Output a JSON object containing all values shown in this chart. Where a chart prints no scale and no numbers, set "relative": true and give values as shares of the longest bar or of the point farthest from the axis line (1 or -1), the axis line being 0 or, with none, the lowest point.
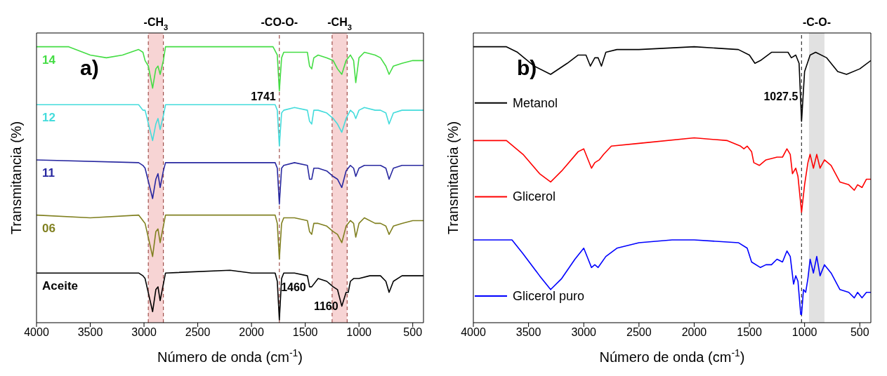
{
  "chart_data": [
    {
      "type": "line",
      "relative": true,
      "xlabel": "Número de onda (cm$^{-1}$)",
      "ylabel": "Transmitancia (%)",
      "xlim": [
        4000,
        400
      ],
      "xticks": [
        4000,
        3500,
        3000,
        2500,
        2000,
        1500,
        1000,
        500
      ],
      "legend": false,
      "series": [
        {
          "name": "14",
          "color": "#44dd44",
          "x": [
            4000,
            3700,
            3500,
            3350,
            3200,
            3050,
            3010,
            2990,
            2960,
            2920,
            2890,
            2870,
            2850,
            2820,
            2800,
            2500,
            2000,
            1800,
            1760,
            1741,
            1720,
            1700,
            1600,
            1480,
            1460,
            1440,
            1420,
            1380,
            1300,
            1240,
            1200,
            1160,
            1120,
            1080,
            1050,
            1030,
            1000,
            950,
            850,
            800,
            750,
            720,
            680,
            600,
            500,
            400
          ],
          "values": [
            1.0,
            1.0,
            0.97,
            0.96,
            0.97,
            0.99,
            0.98,
            0.95,
            0.93,
            0.85,
            0.92,
            0.93,
            0.9,
            0.95,
            1.0,
            1.0,
            1.0,
            1.0,
            0.97,
            0.84,
            0.96,
            0.98,
            0.98,
            0.98,
            0.93,
            0.92,
            0.96,
            0.97,
            0.96,
            0.95,
            0.92,
            0.9,
            0.95,
            0.97,
            0.95,
            0.87,
            0.96,
            0.98,
            0.97,
            0.96,
            0.93,
            0.9,
            0.93,
            0.94,
            0.95,
            0.95
          ]
        },
        {
          "name": "12",
          "color": "#44dcdc",
          "x": [
            4000,
            3050,
            3010,
            2990,
            2920,
            2890,
            2870,
            2850,
            2820,
            2800,
            2000,
            1780,
            1760,
            1741,
            1720,
            1700,
            1600,
            1480,
            1460,
            1440,
            1420,
            1380,
            1300,
            1240,
            1200,
            1160,
            1120,
            1080,
            1050,
            1030,
            1000,
            950,
            850,
            800,
            750,
            720,
            680,
            600,
            500,
            400
          ],
          "values": [
            0.79,
            0.79,
            0.77,
            0.77,
            0.66,
            0.72,
            0.74,
            0.7,
            0.75,
            0.79,
            0.79,
            0.79,
            0.77,
            0.64,
            0.76,
            0.77,
            0.78,
            0.77,
            0.73,
            0.72,
            0.77,
            0.77,
            0.76,
            0.74,
            0.72,
            0.69,
            0.74,
            0.77,
            0.76,
            0.74,
            0.77,
            0.78,
            0.77,
            0.77,
            0.76,
            0.72,
            0.76,
            0.77,
            0.77,
            0.77
          ]
        },
        {
          "name": "11",
          "color": "#2828a0",
          "x": [
            4000,
            3050,
            3010,
            2990,
            2920,
            2890,
            2870,
            2850,
            2820,
            2800,
            2000,
            1780,
            1760,
            1741,
            1720,
            1700,
            1600,
            1480,
            1460,
            1440,
            1420,
            1380,
            1300,
            1240,
            1200,
            1160,
            1120,
            1080,
            1050,
            1030,
            1000,
            950,
            850,
            800,
            750,
            720,
            680,
            600,
            500,
            400
          ],
          "values": [
            0.59,
            0.58,
            0.57,
            0.56,
            0.45,
            0.52,
            0.54,
            0.49,
            0.55,
            0.58,
            0.58,
            0.58,
            0.56,
            0.43,
            0.56,
            0.57,
            0.58,
            0.57,
            0.52,
            0.52,
            0.56,
            0.56,
            0.55,
            0.53,
            0.52,
            0.49,
            0.55,
            0.57,
            0.56,
            0.53,
            0.56,
            0.57,
            0.57,
            0.57,
            0.56,
            0.52,
            0.56,
            0.57,
            0.57,
            0.57
          ]
        },
        {
          "name": "06",
          "color": "#808020",
          "x": [
            4000,
            3500,
            3050,
            3010,
            2990,
            2920,
            2890,
            2870,
            2850,
            2820,
            2800,
            2000,
            1780,
            1760,
            1741,
            1720,
            1700,
            1600,
            1480,
            1460,
            1440,
            1420,
            1380,
            1300,
            1240,
            1200,
            1160,
            1120,
            1080,
            1050,
            1030,
            1000,
            950,
            850,
            800,
            750,
            720,
            680,
            600,
            500,
            400
          ],
          "values": [
            0.39,
            0.38,
            0.39,
            0.37,
            0.36,
            0.24,
            0.33,
            0.34,
            0.29,
            0.35,
            0.39,
            0.39,
            0.39,
            0.36,
            0.23,
            0.36,
            0.38,
            0.38,
            0.37,
            0.33,
            0.32,
            0.36,
            0.36,
            0.35,
            0.33,
            0.32,
            0.29,
            0.35,
            0.37,
            0.36,
            0.31,
            0.36,
            0.38,
            0.36,
            0.36,
            0.35,
            0.32,
            0.35,
            0.36,
            0.37,
            0.37
          ]
        },
        {
          "name": "Aceite",
          "color": "#000000",
          "x": [
            4000,
            3050,
            3010,
            2990,
            2920,
            2890,
            2870,
            2850,
            2820,
            2800,
            2200,
            2000,
            1780,
            1760,
            1741,
            1720,
            1700,
            1600,
            1480,
            1460,
            1440,
            1380,
            1300,
            1240,
            1200,
            1160,
            1120,
            1100,
            1080,
            1050,
            1000,
            900,
            800,
            750,
            720,
            680,
            600,
            500,
            400
          ],
          "values": [
            0.18,
            0.18,
            0.17,
            0.16,
            0.04,
            0.12,
            0.13,
            0.08,
            0.14,
            0.18,
            0.19,
            0.18,
            0.18,
            0.15,
            0.01,
            0.16,
            0.18,
            0.18,
            0.17,
            0.13,
            0.13,
            0.16,
            0.15,
            0.13,
            0.12,
            0.06,
            0.11,
            0.11,
            0.15,
            0.16,
            0.16,
            0.17,
            0.17,
            0.15,
            0.11,
            0.15,
            0.17,
            0.17,
            0.17
          ]
        }
      ],
      "bands": [
        {
          "axis": "x",
          "from": 2960,
          "to": 2820,
          "label": "-CH$_{3}$",
          "color": "#f6cccc"
        },
        {
          "axis": "x",
          "from": 1250,
          "to": 1110,
          "label": "-CH$_{3}$",
          "color": "#f6cccc"
        }
      ],
      "ref_lines": [
        {
          "axis": "x",
          "value": 1741,
          "label": "-CO-O-",
          "color": "#a0504c",
          "line_style": "dashed"
        },
        {
          "axis": "x",
          "value": 2960,
          "color": "#a0504c",
          "line_style": "dashed"
        },
        {
          "axis": "x",
          "value": 2820,
          "color": "#a0504c",
          "line_style": "dashed"
        },
        {
          "axis": "x",
          "value": 1250,
          "color": "#a0504c",
          "line_style": "dashed"
        },
        {
          "axis": "x",
          "value": 1110,
          "color": "#a0504c",
          "line_style": "dashed"
        }
      ],
      "annotations": [
        "a)",
        {
          "text": "1741",
          "x": 1741,
          "y": 0.82
        },
        {
          "text": "1160",
          "x": 1160,
          "y": 0.06
        },
        {
          "text": "1460",
          "x": 1460,
          "y": 0.13
        }
      ]
    },
    {
      "type": "line",
      "relative": true,
      "xlabel": "Número de onda (cm$^{-1}$)",
      "ylabel": "Transmitancia (%)",
      "xlim": [
        4000,
        400
      ],
      "xticks": [
        4000,
        3500,
        3000,
        2500,
        2000,
        1500,
        1000,
        500
      ],
      "legend": "left",
      "series": [
        {
          "name": "Metanol",
          "color": "#000000",
          "x": [
            4000,
            3700,
            3600,
            3450,
            3300,
            3150,
            3050,
            2980,
            2940,
            2900,
            2870,
            2840,
            2800,
            2700,
            2500,
            2000,
            1600,
            1500,
            1450,
            1400,
            1300,
            1150,
            1120,
            1080,
            1050,
            1027.5,
            1000,
            950,
            900,
            800,
            700,
            620,
            500,
            400
          ],
          "values": [
            1.0,
            1.0,
            0.98,
            0.93,
            0.9,
            0.94,
            0.97,
            0.97,
            0.93,
            0.96,
            0.96,
            0.93,
            0.98,
            0.99,
            0.99,
            1.0,
            0.99,
            0.97,
            0.94,
            0.95,
            0.98,
            0.98,
            0.96,
            0.97,
            0.94,
            0.73,
            0.91,
            0.97,
            0.98,
            0.96,
            0.91,
            0.9,
            0.92,
            0.95
          ]
        },
        {
          "name": "Glicerol",
          "color": "#ff0000",
          "x": [
            4000,
            3700,
            3550,
            3400,
            3300,
            3200,
            3050,
            3000,
            2960,
            2930,
            2900,
            2860,
            2820,
            2750,
            2500,
            2000,
            1700,
            1580,
            1550,
            1520,
            1480,
            1460,
            1410,
            1350,
            1250,
            1200,
            1160,
            1130,
            1110,
            1080,
            1060,
            1027.5,
            1000,
            970,
            950,
            920,
            890,
            860,
            820,
            760,
            680,
            600,
            550,
            520,
            480,
            440,
            400
          ],
          "values": [
            0.66,
            0.66,
            0.61,
            0.54,
            0.51,
            0.55,
            0.62,
            0.63,
            0.59,
            0.56,
            0.58,
            0.59,
            0.61,
            0.64,
            0.65,
            0.67,
            0.66,
            0.64,
            0.63,
            0.64,
            0.62,
            0.58,
            0.57,
            0.59,
            0.6,
            0.6,
            0.63,
            0.61,
            0.54,
            0.56,
            0.53,
            0.4,
            0.5,
            0.58,
            0.61,
            0.56,
            0.61,
            0.56,
            0.59,
            0.57,
            0.51,
            0.5,
            0.48,
            0.5,
            0.49,
            0.52,
            0.52
          ]
        },
        {
          "name": "Glicerol puro",
          "color": "#0000ff",
          "x": [
            4000,
            3650,
            3550,
            3400,
            3300,
            3200,
            3080,
            3000,
            2960,
            2930,
            2900,
            2870,
            2800,
            2700,
            2500,
            2200,
            2000,
            1600,
            1520,
            1480,
            1400,
            1350,
            1300,
            1250,
            1200,
            1160,
            1130,
            1100,
            1080,
            1060,
            1035,
            1027.5,
            1010,
            990,
            970,
            950,
            920,
            890,
            860,
            820,
            760,
            680,
            600,
            550,
            520,
            480,
            440,
            400
          ],
          "values": [
            0.3,
            0.3,
            0.25,
            0.17,
            0.12,
            0.16,
            0.23,
            0.27,
            0.23,
            0.2,
            0.21,
            0.2,
            0.24,
            0.27,
            0.29,
            0.3,
            0.3,
            0.29,
            0.27,
            0.22,
            0.2,
            0.21,
            0.21,
            0.23,
            0.22,
            0.26,
            0.24,
            0.14,
            0.17,
            0.15,
            0.03,
            0.03,
            0.12,
            0.11,
            0.16,
            0.23,
            0.18,
            0.24,
            0.17,
            0.21,
            0.18,
            0.12,
            0.11,
            0.09,
            0.11,
            0.09,
            0.11,
            0.11
          ]
        }
      ],
      "bands": [
        {
          "axis": "x",
          "from": 960,
          "to": 820,
          "label": "-C-O-",
          "color": "#dcdcdc"
        }
      ],
      "ref_lines": [
        {
          "axis": "x",
          "value": 1027.5,
          "color": "#333333",
          "line_style": "dashed"
        }
      ],
      "annotations": [
        "b)",
        {
          "text": "1027.5",
          "x": 1027.5,
          "y": 0.82
        }
      ]
    }
  ]
}
